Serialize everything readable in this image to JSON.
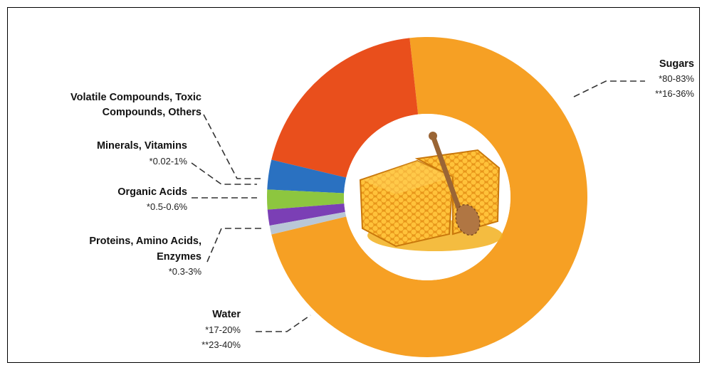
{
  "chart_data": {
    "type": "pie",
    "variant": "donut",
    "center_image": "honeycomb with honey dipper",
    "slices": [
      {
        "name": "Sugars",
        "value": 73.0,
        "color": "#F6A024",
        "values": [
          "*80-83%",
          "**16-36%"
        ]
      },
      {
        "name": "Water",
        "value": 19.5,
        "color": "#E94F1C",
        "values": [
          "*17-20%",
          "**23-40%"
        ]
      },
      {
        "name": "Proteins, Amino Acids, Enzymes",
        "value": 3.0,
        "color": "#2A71C1",
        "values": [
          "*0.3-3%"
        ]
      },
      {
        "name": "Organic Acids",
        "value": 2.0,
        "color": "#8DC63F",
        "values": [
          "*0.5-0.6%"
        ]
      },
      {
        "name": "Minerals, Vitamins",
        "value": 1.6,
        "color": "#7B3FB5",
        "values": [
          "*0.02-1%"
        ]
      },
      {
        "name": "Volatile Compounds,  Toxic Compounds, Others",
        "value": 0.9,
        "color": "#B9C7D6",
        "values": []
      }
    ]
  },
  "labels": {
    "sugars": {
      "title": "Sugars",
      "v1": "*80-83%",
      "v2": "**16-36%"
    },
    "volatile": {
      "title1": "Volatile Compounds,  Toxic",
      "title2": "Compounds, Others"
    },
    "minerals": {
      "title": "Minerals, Vitamins",
      "v1": "*0.02-1%"
    },
    "organic": {
      "title": "Organic Acids",
      "v1": "*0.5-0.6%"
    },
    "proteins": {
      "title1": "Proteins, Amino Acids,",
      "title2": "Enzymes",
      "v1": "*0.3-3%"
    },
    "water": {
      "title": "Water",
      "v1": "*17-20%",
      "v2": "**23-40%"
    }
  }
}
